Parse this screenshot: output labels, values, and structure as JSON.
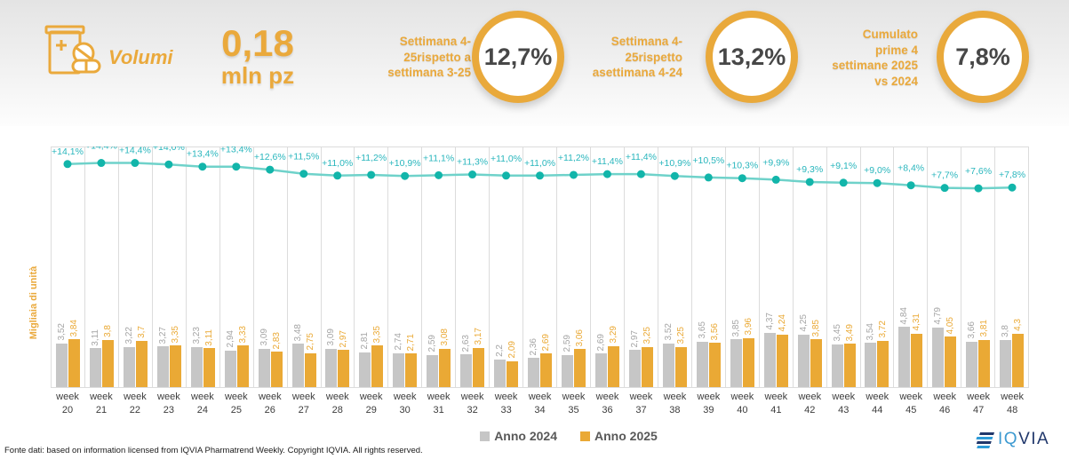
{
  "header": {
    "icon_label": "Volumi",
    "metric": {
      "value": "0,18",
      "unit": "mln pz"
    },
    "kpis": [
      {
        "label": "Settimana 4-\n25rispetto a\nsettimana 3-25",
        "value": "12,7%"
      },
      {
        "label": "Settimana 4-\n25rispetto\nasettimana 4-24",
        "value": "13,2%"
      },
      {
        "label": "Cumulato\nprime 4\nsettimane 2025\nvs 2024",
        "value": "7,8%"
      }
    ]
  },
  "chart_data": {
    "type": "bar",
    "title": "",
    "xlabel": "",
    "ylabel": "Migliaia di unità",
    "ylim": [
      0,
      5.2
    ],
    "grid": "vertical-columns-only",
    "legend_position": "bottom-center",
    "category_prefix": "week",
    "categories": [
      "20",
      "21",
      "22",
      "23",
      "24",
      "25",
      "26",
      "27",
      "28",
      "29",
      "30",
      "31",
      "32",
      "33",
      "34",
      "35",
      "36",
      "37",
      "38",
      "39",
      "40",
      "41",
      "42",
      "43",
      "44",
      "45",
      "46",
      "47",
      "48"
    ],
    "series": [
      {
        "name": "Anno 2024",
        "color": "#C6C6C6",
        "label_color": "#A5A5A5",
        "values": [
          3.52,
          3.11,
          3.22,
          3.27,
          3.23,
          2.94,
          3.09,
          3.48,
          3.09,
          2.81,
          2.74,
          2.59,
          2.63,
          2.2,
          2.36,
          2.59,
          2.69,
          2.97,
          3.52,
          3.65,
          3.85,
          4.37,
          4.25,
          3.45,
          3.54,
          4.84,
          4.79,
          3.66,
          3.8
        ],
        "labels": [
          "3,52",
          "3,11",
          "3,22",
          "3,27",
          "3,23",
          "2,94",
          "3,09",
          "3,48",
          "3,09",
          "2,81",
          "2,74",
          "2,59",
          "2,63",
          "2,2",
          "2,36",
          "2,59",
          "2,69",
          "2,97",
          "3,52",
          "3,65",
          "3,85",
          "4,37",
          "4,25",
          "3,45",
          "3,54",
          "4,84",
          "4,79",
          "3,66",
          "3,8"
        ]
      },
      {
        "name": "Anno 2025",
        "color": "#EAA935",
        "label_color": "#EAA935",
        "values": [
          3.84,
          3.8,
          3.7,
          3.35,
          3.11,
          3.33,
          2.83,
          2.75,
          2.97,
          3.35,
          2.71,
          3.08,
          3.17,
          2.09,
          2.69,
          3.06,
          3.29,
          3.25,
          3.25,
          3.56,
          3.96,
          4.24,
          3.85,
          3.49,
          3.72,
          4.31,
          4.05,
          3.81,
          4.3
        ],
        "labels": [
          "3,84",
          "3,8",
          "3,7",
          "3,35",
          "3,11",
          "3,33",
          "2,83",
          "2,75",
          "2,97",
          "3,35",
          "2,71",
          "3,08",
          "3,17",
          "2,09",
          "2,69",
          "3,06",
          "3,29",
          "3,25",
          "3,25",
          "3,56",
          "3,96",
          "4,24",
          "3,85",
          "3,49",
          "3,72",
          "4,31",
          "4,05",
          "3,81",
          "4,3"
        ]
      }
    ],
    "line_series": {
      "dot_color": "#12B5AA",
      "stroke_color": "#6FD2CA",
      "label_color": "#29B6BD",
      "values": [
        14.1,
        14.4,
        14.4,
        14.0,
        13.4,
        13.4,
        12.6,
        11.5,
        11.0,
        11.2,
        10.9,
        11.1,
        11.3,
        11.0,
        11.0,
        11.2,
        11.4,
        11.4,
        10.9,
        10.5,
        10.3,
        9.9,
        9.3,
        9.1,
        9.0,
        8.4,
        7.7,
        7.6,
        7.8
      ],
      "labels": [
        "+14,1%",
        "+14,4%",
        "+14,4%",
        "+14,0%",
        "+13,4%",
        "+13,4%",
        "+12,6%",
        "+11,5%",
        "+11,0%",
        "+11,2%",
        "+10,9%",
        "+11,1%",
        "+11,3%",
        "+11,0%",
        "+11,0%",
        "+11,2%",
        "+11,4%",
        "+11,4%",
        "+10,9%",
        "+10,5%",
        "+10,3%",
        "+9,9%",
        "+9,3%",
        "+9,1%",
        "+9,0%",
        "+8,4%",
        "+7,7%",
        "+7,6%",
        "+7,8%"
      ]
    }
  },
  "legend": {
    "items": [
      {
        "label": "Anno 2024",
        "color": "#C6C6C6"
      },
      {
        "label": "Anno 2025",
        "color": "#EAA935"
      }
    ]
  },
  "footer": {
    "source": "Fonte dati: based on information licensed from IQVIA Pharmatrend Weekly. Copyright IQVIA. All rights reserved.",
    "logo": {
      "iq": "IQ",
      "via": "VIA"
    }
  }
}
